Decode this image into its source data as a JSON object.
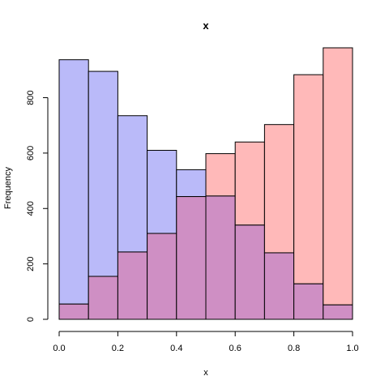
{
  "chart_data": {
    "type": "bar",
    "title": "x",
    "xlabel": "x",
    "ylabel": "Frequency",
    "xlim": [
      0,
      1
    ],
    "ylim": [
      0,
      980
    ],
    "bin_edges": [
      0.0,
      0.1,
      0.2,
      0.3,
      0.4,
      0.5,
      0.6,
      0.7,
      0.8,
      0.9,
      1.0
    ],
    "x_ticks": [
      0.0,
      0.2,
      0.4,
      0.6,
      0.8,
      1.0
    ],
    "x_tick_labels": [
      "0.0",
      "0.2",
      "0.4",
      "0.6",
      "0.8",
      "1.0"
    ],
    "y_ticks": [
      0,
      200,
      400,
      600,
      800
    ],
    "y_tick_labels": [
      "0",
      "200",
      "400",
      "600",
      "800"
    ],
    "grid": false,
    "series": [
      {
        "values": [
          937,
          895,
          735,
          610,
          540,
          445,
          340,
          240,
          128,
          52
        ],
        "color": "#babaf9"
      },
      {
        "values": [
          55,
          155,
          243,
          310,
          443,
          598,
          640,
          703,
          883,
          980
        ],
        "color": "#ffb9b9"
      }
    ],
    "overlap_color": "#cf8fc4"
  }
}
